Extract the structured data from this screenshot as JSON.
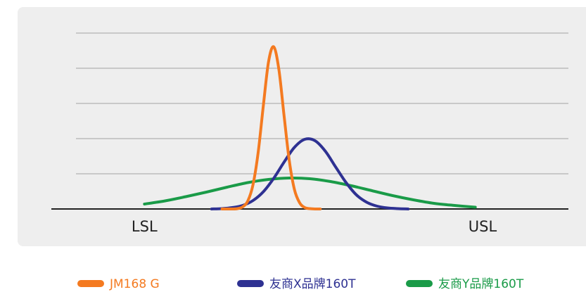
{
  "chart_data": {
    "type": "line",
    "xlim": [
      0,
      100
    ],
    "ylim": [
      0,
      5
    ],
    "yticks": [
      0,
      1,
      2,
      3,
      4,
      5
    ],
    "grid": true,
    "legend": "bottom",
    "annotations": [
      {
        "text": "LSL",
        "x": 18
      },
      {
        "text": "USL",
        "x": 83.4
      }
    ],
    "series": [
      {
        "name": "JM168 G",
        "color": "#f47a20",
        "x": [
          33,
          34,
          35,
          36,
          37,
          38,
          39,
          40,
          41,
          42,
          43,
          44,
          45,
          46,
          47,
          48,
          49,
          50,
          51,
          52
        ],
        "values": [
          0,
          0,
          0,
          0.01,
          0.06,
          0.23,
          0.69,
          1.61,
          2.94,
          4.18,
          4.61,
          3.97,
          2.66,
          1.39,
          0.56,
          0.18,
          0.04,
          0.01,
          0,
          0
        ]
      },
      {
        "name": "友商X品牌160T",
        "color": "#2e3192",
        "x": [
          31,
          33,
          35,
          37,
          39,
          41,
          43,
          45,
          47,
          49,
          51,
          53,
          55,
          57,
          59,
          61,
          63,
          65,
          67,
          69
        ],
        "values": [
          0,
          0.01,
          0.04,
          0.1,
          0.24,
          0.49,
          0.87,
          1.33,
          1.75,
          1.98,
          1.94,
          1.64,
          1.19,
          0.75,
          0.4,
          0.19,
          0.08,
          0.03,
          0.01,
          0
        ]
      },
      {
        "name": "友商Y品牌160T",
        "color": "#1a9b48",
        "x": [
          18,
          22,
          26,
          30,
          34,
          38,
          42,
          46,
          50,
          54,
          58,
          62,
          66,
          70,
          74,
          78,
          82
        ],
        "values": [
          0.14,
          0.23,
          0.35,
          0.48,
          0.62,
          0.75,
          0.84,
          0.88,
          0.86,
          0.78,
          0.66,
          0.52,
          0.38,
          0.26,
          0.16,
          0.1,
          0.05
        ]
      }
    ]
  }
}
